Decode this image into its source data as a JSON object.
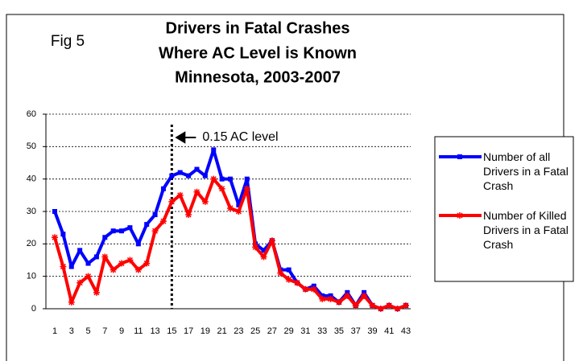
{
  "chart_data": {
    "type": "line",
    "figure_label": "Fig 5",
    "title": [
      "Drivers in Fatal Crashes",
      "Where AC Level is Known",
      "Minnesota, 2003-2007"
    ],
    "categories": [
      "1",
      null,
      "3",
      null,
      "5",
      null,
      "7",
      null,
      "9",
      null,
      "11",
      null,
      "13",
      null,
      "15",
      null,
      "17",
      null,
      "19",
      null,
      "21",
      null,
      "23",
      null,
      "25",
      null,
      "27",
      null,
      "29",
      null,
      "31",
      null,
      "33",
      null,
      "35",
      null,
      "37",
      null,
      "39",
      null,
      "41",
      null,
      "43"
    ],
    "series": [
      {
        "name": "Number of all Drivers in a Fatal Crash",
        "color": "#0000ff",
        "marker": "square",
        "values": [
          30,
          23,
          13,
          18,
          14,
          16,
          22,
          24,
          24,
          25,
          20,
          26,
          29,
          37,
          41,
          42,
          41,
          43,
          41,
          49,
          40,
          40,
          32,
          40,
          20,
          18,
          21,
          12,
          12,
          8,
          6,
          7,
          4,
          4,
          2,
          5,
          1,
          5,
          1,
          0,
          1,
          0,
          1
        ]
      },
      {
        "name": "Number of Killed Drivers in a Fatal Crash",
        "color": "#ff0000",
        "marker": "star",
        "values": [
          22,
          13,
          2,
          8,
          10,
          5,
          16,
          12,
          14,
          15,
          12,
          14,
          24,
          27,
          33,
          35,
          29,
          36,
          33,
          40,
          37,
          31,
          30,
          37,
          19,
          16,
          21,
          11,
          9,
          8,
          6,
          6,
          3,
          3,
          2,
          4,
          1,
          4,
          1,
          0,
          1,
          0,
          1
        ]
      }
    ],
    "ylim": [
      0,
      60
    ],
    "yticks": [
      0,
      10,
      20,
      30,
      40,
      50,
      60
    ],
    "grid": true,
    "annotations": [
      {
        "text": "0.15 AC level",
        "x_index": 14
      }
    ],
    "legend": "right"
  }
}
